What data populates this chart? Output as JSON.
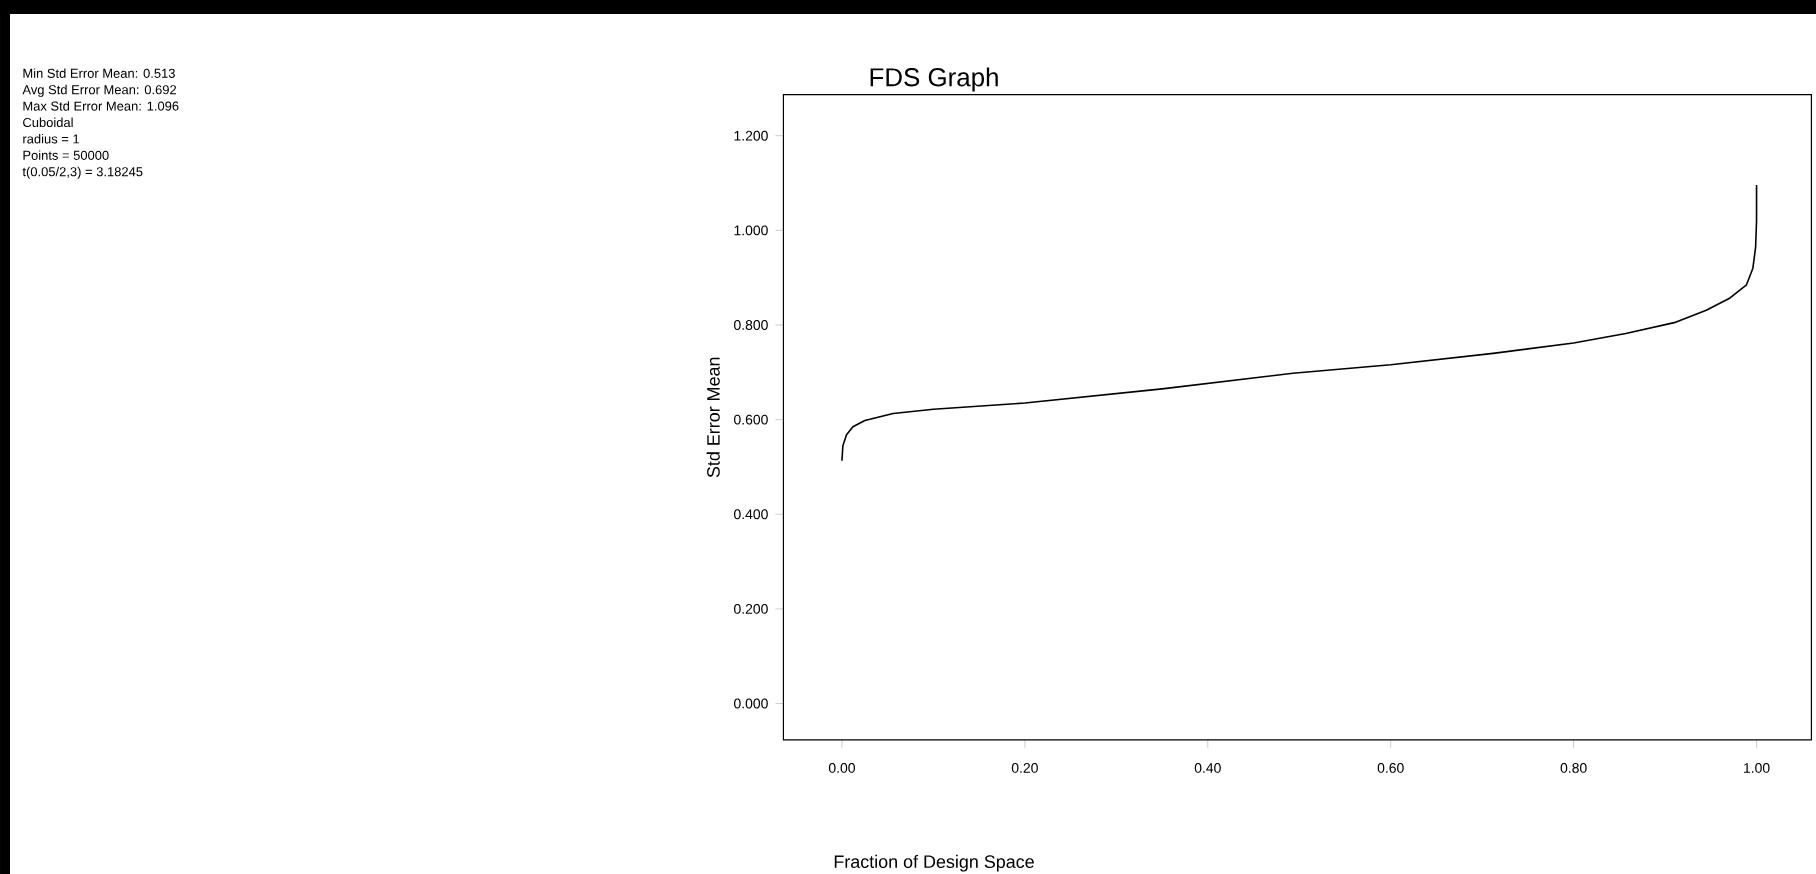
{
  "chart_data": {
    "type": "line",
    "title": "FDS Graph",
    "xlabel": "Fraction of Design Space",
    "ylabel": "Std Error Mean",
    "annotations": [
      "Min Std Error Mean: 0.513",
      "Avg Std Error Mean: 0.692",
      "Max Std Error Mean: 1.096",
      "Cuboidal",
      "radius = 1",
      "Points = 50000",
      "t(0.05/2,3) = 3.18245"
    ],
    "x": [
      0,
      0.001,
      0.005,
      0.012,
      0.025,
      0.056,
      0.1,
      0.2,
      0.35,
      0.493,
      0.6,
      0.712,
      0.8,
      0.857,
      0.91,
      0.945,
      0.97,
      0.989,
      0.996,
      0.999,
      1.0,
      1.0
    ],
    "values": [
      0.513,
      0.545,
      0.568,
      0.585,
      0.598,
      0.613,
      0.622,
      0.635,
      0.665,
      0.698,
      0.716,
      0.74,
      0.762,
      0.782,
      0.805,
      0.831,
      0.856,
      0.885,
      0.92,
      0.965,
      1.02,
      1.096
    ],
    "color": "#000000",
    "xlim": [
      -0.064,
      1.06
    ],
    "ylim": [
      -0.077,
      1.287
    ],
    "xticks": [
      {
        "value": 0,
        "label": "0.00"
      },
      {
        "value": 0.2,
        "label": "0.20"
      },
      {
        "value": 0.4,
        "label": "0.40"
      },
      {
        "value": 0.6,
        "label": "0.60"
      },
      {
        "value": 0.8,
        "label": "0.80"
      },
      {
        "value": 1,
        "label": "1.00"
      }
    ],
    "yticks": [
      {
        "value": 0,
        "label": "0.000"
      },
      {
        "value": 0.2,
        "label": "0.200"
      },
      {
        "value": 0.4,
        "label": "0.400"
      },
      {
        "value": 0.6,
        "label": "0.600"
      },
      {
        "value": 0.8,
        "label": "0.800"
      },
      {
        "value": 1,
        "label": "1.000"
      },
      {
        "value": 1.2,
        "label": "1.200"
      }
    ]
  }
}
